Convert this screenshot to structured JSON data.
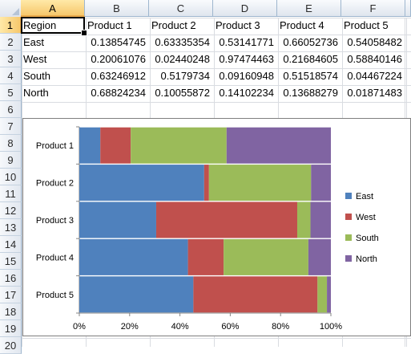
{
  "spreadsheet": {
    "columns": [
      "A",
      "B",
      "C",
      "D",
      "E",
      "F"
    ],
    "selected_column": "A",
    "selected_row": "1",
    "rows": [
      "1",
      "2",
      "3",
      "4",
      "5",
      "6",
      "7",
      "8",
      "9",
      "10",
      "11",
      "12",
      "13",
      "14",
      "15",
      "16",
      "17",
      "18",
      "19",
      "20"
    ],
    "header_row": [
      "Region",
      "Product 1",
      "Product 2",
      "Product 3",
      "Product 4",
      "Product 5"
    ],
    "data_rows": [
      [
        "East",
        "0.13854745",
        "0.63335354",
        "0.53141771",
        "0.66052736",
        "0.54058482"
      ],
      [
        "West",
        "0.20061076",
        "0.02440248",
        "0.97474463",
        "0.21684605",
        "0.58840146"
      ],
      [
        "South",
        "0.63246912",
        "0.5179734",
        "0.09160948",
        "0.51518574",
        "0.04467224"
      ],
      [
        "North",
        "0.68824234",
        "0.10055872",
        "0.14102234",
        "0.13688279",
        "0.01871483"
      ]
    ]
  },
  "chart_data": {
    "type": "bar",
    "orientation": "horizontal",
    "stacked": "percent",
    "categories": [
      "Product 1",
      "Product 2",
      "Product 3",
      "Product 4",
      "Product 5"
    ],
    "series": [
      {
        "name": "East",
        "values": [
          0.13854745,
          0.63335354,
          0.53141771,
          0.66052736,
          0.54058482
        ],
        "color": "#4f81bd"
      },
      {
        "name": "West",
        "values": [
          0.20061076,
          0.02440248,
          0.97474463,
          0.21684605,
          0.58840146
        ],
        "color": "#c0504d"
      },
      {
        "name": "South",
        "values": [
          0.63246912,
          0.5179734,
          0.09160948,
          0.51518574,
          0.04467224
        ],
        "color": "#9bbb59"
      },
      {
        "name": "North",
        "values": [
          0.68824234,
          0.10055872,
          0.14102234,
          0.13688279,
          0.01871483
        ],
        "color": "#8064a2"
      }
    ],
    "x_ticks": [
      "0%",
      "20%",
      "40%",
      "60%",
      "80%",
      "100%"
    ],
    "xlim": [
      0,
      100
    ],
    "legend_position": "right",
    "gridlines": false
  }
}
